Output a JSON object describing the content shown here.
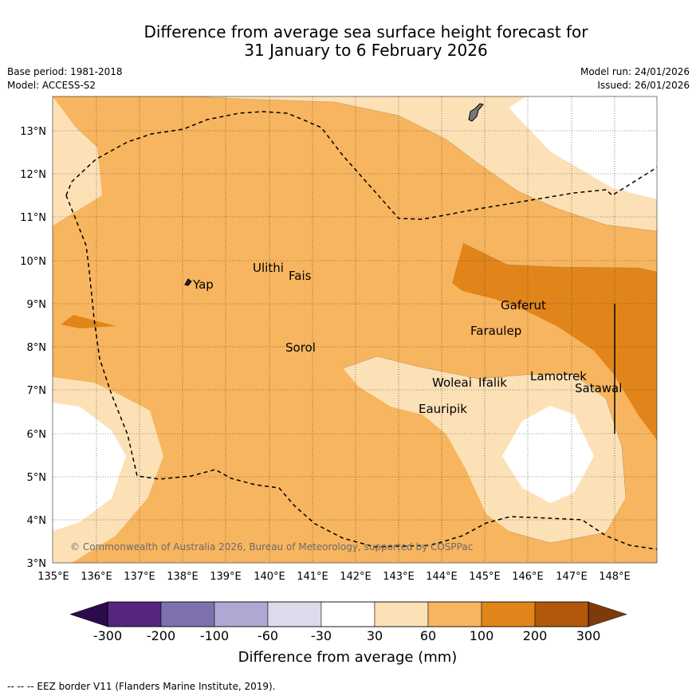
{
  "header": {
    "title_line1": "Difference from average sea surface height forecast for",
    "title_line2": "31 January to 6 February 2026",
    "base_period": "Base period: 1981-2018",
    "model": "Model: ACCESS-S2",
    "model_run": "Model run: 24/01/2026",
    "issued": "Issued: 26/01/2026"
  },
  "map": {
    "lat_labels": [
      "13°N",
      "12°N",
      "11°N",
      "10°N",
      "9°N",
      "8°N",
      "7°N",
      "6°N",
      "5°N",
      "4°N",
      "3°N"
    ],
    "lon_labels": [
      "135°E",
      "136°E",
      "137°E",
      "138°E",
      "139°E",
      "140°E",
      "141°E",
      "142°E",
      "143°E",
      "144°E",
      "145°E",
      "146°E",
      "147°E",
      "148°E"
    ],
    "places": {
      "yap": "Yap",
      "ulithi": "Ulithi",
      "fais": "Fais",
      "sorol": "Sorol",
      "gaferut": "Gaferut",
      "faraulep": "Faraulep",
      "lamotrek": "Lamotrek",
      "satawal": "Satawal",
      "woleai": "Woleai",
      "ifalik": "Ifalik",
      "eauripik": "Eauripik"
    },
    "copyright": "© Commonwealth of Australia 2026, Bureau of Meteorology, supported by COSPPac"
  },
  "colorbar": {
    "labels": [
      "-300",
      "-200",
      "-100",
      "-60",
      "-30",
      "30",
      "60",
      "100",
      "200",
      "300"
    ],
    "colors": [
      "#54267f",
      "#7f71ad",
      "#afa8d2",
      "#dcdaeb",
      "#ffffff",
      "#fde1b6",
      "#f8b55f",
      "#e1851b",
      "#b1580a"
    ],
    "under_color": "#2b0a4d",
    "over_color": "#7f3a0b",
    "title": "Difference from average (mm)"
  },
  "footer": {
    "eez_legend": "--  --  -- EEZ border V11 (Flanders Marine Institute, 2019)."
  }
}
